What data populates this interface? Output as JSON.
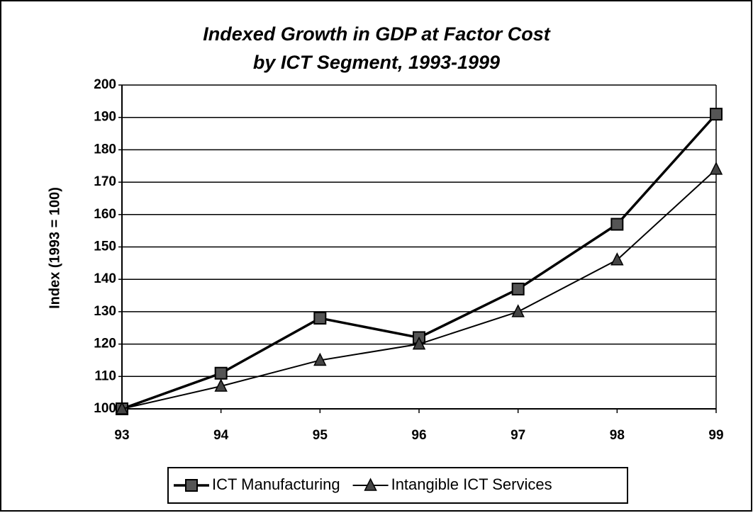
{
  "chart_data": {
    "type": "line",
    "title": "Indexed Growth in GDP at Factor Cost",
    "subtitle": "by ICT Segment, 1993-1999",
    "y_label": "Index (1993 = 100)",
    "categories": [
      "93",
      "94",
      "95",
      "96",
      "97",
      "98",
      "99"
    ],
    "series": [
      {
        "name": "ICT Manufacturing",
        "color": "#000000",
        "marker": "square",
        "values": [
          100,
          111,
          128,
          122,
          137,
          157,
          191
        ]
      },
      {
        "name": "Intangible ICT Services",
        "color": "#000000",
        "marker": "triangle",
        "values": [
          100,
          107,
          115,
          120,
          130,
          146,
          174
        ]
      }
    ],
    "ylim": [
      100,
      200
    ],
    "yticks": [
      100,
      110,
      120,
      130,
      140,
      150,
      160,
      170,
      180,
      190,
      200
    ],
    "grid": true,
    "legend": "bottom"
  }
}
